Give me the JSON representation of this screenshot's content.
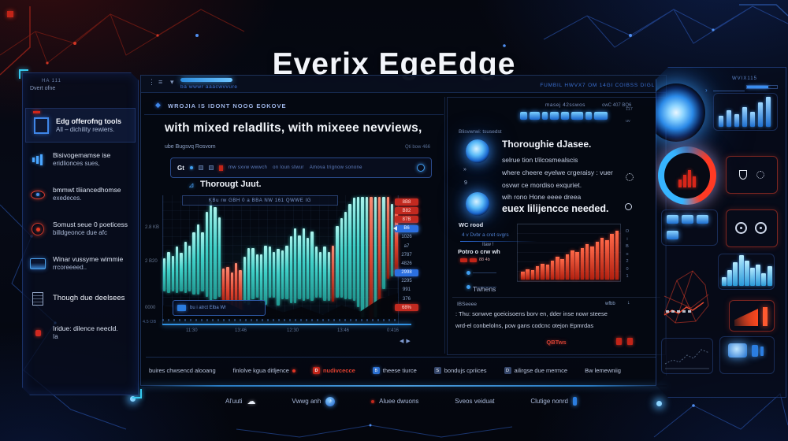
{
  "title": "Everix EgeEdge",
  "colors": {
    "accent_blue": "#2e8fe0",
    "accent_cyan": "#3fd0c8",
    "accent_red": "#d0261a",
    "panel_border": "#1c3158"
  },
  "sidebar": {
    "meta1": "HA 111",
    "meta2": "Dvert ofne",
    "items": [
      {
        "icon": "frame",
        "label1": "Edg offerofng tools",
        "label2": "All – dichility rewiers."
      },
      {
        "icon": "bars",
        "label1": "Bisivogemamse ise",
        "label2": "eridlionces sues,"
      },
      {
        "icon": "eye",
        "label1": "bmmwt tliiancedhomse",
        "label2": "exedeces."
      },
      {
        "icon": "target",
        "label1": "Somust seue 0 poeticess",
        "label2": "billdgeonce due afc"
      },
      {
        "icon": "inbox",
        "label1": "Winar vussyme wimmie",
        "label2": "rrcoreeeed.."
      },
      {
        "icon": "doc",
        "label1": "Though due deelsees",
        "label2": ""
      },
      {
        "icon": "reddot",
        "label1": "Iridue: dilence neecld.",
        "label2": "Ia"
      }
    ]
  },
  "window": {
    "topbar_note": "ba wwwr aaacwvvure",
    "topbar_right": "FUMBIL HWVX7 OM 14GI COIBSS DIGL",
    "menu_icons": {
      "kebab": "⋮",
      "hamburger": "≡",
      "caret": "▾"
    },
    "section_header": "WROJIA IS IDONT NOOG EOKOVE",
    "headline": "with mixed reladlits, with mixeee nevviews,",
    "subleft": "ube Bugsvq Rosvom",
    "subright": "Qti bow 466",
    "toolbar": {
      "label": "Gt",
      "mini1": "mw sxvw wwwch",
      "mini2": "on loun stwur",
      "mini3": "Amova trignow sonone"
    },
    "chart": {
      "label": "Thorougt Juut.",
      "tooltip": "KBu rw GBH 0 a BBA NW 161 QWWE IG",
      "y_labels": [
        "2.8 KB",
        "2 B20",
        "0000"
      ],
      "axis_note": "4.5 OB",
      "x_labels": [
        "11:30",
        "13:46",
        "12:30",
        "13:46",
        "0:416"
      ],
      "legend": "bu i atrct Elba Wr",
      "pager": {
        "prev": "◀",
        "next": "▶"
      },
      "price_scale": [
        {
          "t": "8B8",
          "k": "red"
        },
        {
          "t": "B82",
          "k": "red"
        },
        {
          "t": "87B",
          "k": "red"
        },
        {
          "t": "B6",
          "k": "cursor"
        },
        {
          "t": "1026",
          "k": "plain"
        },
        {
          "t": "a7",
          "k": "plain"
        },
        {
          "t": "2787",
          "k": "plain"
        },
        {
          "t": "4826",
          "k": "plain"
        },
        {
          "t": "2998",
          "k": "blue"
        },
        {
          "t": "2295",
          "k": "plain"
        },
        {
          "t": "991",
          "k": "plain"
        },
        {
          "t": "376",
          "k": "plain"
        },
        {
          "t": "68%",
          "k": "red"
        }
      ],
      "bars": {
        "heights": [
          26,
          32,
          28,
          36,
          30,
          40,
          36,
          48,
          54,
          46,
          66,
          78,
          72,
          62,
          30,
          36,
          32,
          40,
          34,
          36,
          44,
          40,
          34,
          38,
          46,
          40,
          36,
          44,
          38,
          42,
          52,
          58,
          50,
          56,
          48,
          54,
          40,
          36,
          42,
          38,
          44,
          56,
          62,
          68,
          74,
          80,
          86,
          94,
          88,
          100,
          94,
          82,
          72,
          64,
          56,
          48
        ],
        "centers": [
          62,
          60,
          61,
          58,
          60,
          56,
          57,
          53,
          50,
          52,
          46,
          44,
          45,
          48,
          72,
          74,
          76,
          73,
          75,
          66,
          63,
          61,
          63,
          65,
          62,
          60,
          62,
          64,
          62,
          60,
          58,
          55,
          56,
          54,
          57,
          55,
          60,
          62,
          61,
          63,
          61,
          52,
          49,
          47,
          44,
          42,
          40,
          37,
          38,
          34,
          36,
          34,
          30,
          32,
          35,
          38
        ],
        "reds": [
          14,
          15,
          16,
          17,
          18,
          40,
          49,
          51,
          53,
          55
        ]
      }
    }
  },
  "detail": {
    "meta_left": "masej 42sswos",
    "meta_right": "owC 407 BQ6",
    "meta_tiny1": "117",
    "meta_tiny2": "uv",
    "icon_row": [
      9,
      13,
      7,
      11,
      10,
      15,
      8,
      17
    ],
    "sublabel": "Blisvwrwi: tsusedst",
    "glyph1": "»",
    "glyph2": "9",
    "lines": {
      "title": "Thoroughie dJasee.",
      "l1": "selrue tion t/ilcosmealscis",
      "l2": "where cheere eyelwe crgeraisy : vuer",
      "l3": "osvwr ce mordiso exquriet.",
      "l4": "wih rono Hone eeee dreea",
      "emph": "euex lilijencce needed."
    },
    "wc_label": "WC rood",
    "wc_link": "4 v Dvbr a cret svgrs",
    "mini_label1": "Itaw !",
    "mini_label2": "Potro o crw wh",
    "mini_badge_text": "88 4b",
    "mini_chart": {
      "heights": [
        14,
        18,
        16,
        24,
        28,
        26,
        34,
        40,
        36,
        44,
        52,
        48,
        56,
        62,
        58,
        66,
        74,
        70,
        80,
        86
      ]
    },
    "side_marks": [
      "O",
      "i",
      "B",
      "≡",
      "2",
      "0",
      "1"
    ],
    "tw_label": "Twhens",
    "foot_label": "IBSeeee",
    "foot_right": "wfbb",
    "foot_dl": "↓",
    "foot_line1": ": Thu: sonwve goeicisoens borv en, dder inse nowr steese",
    "foot_line2": "wrd-el conbelolns, pow gans codcnc otejon Epmrdas",
    "foot_red": "QBTws"
  },
  "tabs": [
    {
      "label": "buires chwsencd alooang",
      "kind": "plain",
      "icon": ""
    },
    {
      "label": "finlolve kgua ditljence",
      "kind": "reddot",
      "icon": ""
    },
    {
      "label": "nudivcecce",
      "kind": "red",
      "icon": "D"
    },
    {
      "label": "theese tiurce",
      "kind": "blue",
      "icon": "B"
    },
    {
      "label": "bondujs cpriices",
      "kind": "gray",
      "icon": "S"
    },
    {
      "label": "ailirgse due mermce",
      "kind": "gray",
      "icon": "D"
    },
    {
      "label": "Bw lemewniig",
      "kind": "plain",
      "icon": ""
    }
  ],
  "footer": [
    {
      "label": "Al'uuti",
      "icon": "cloud"
    },
    {
      "label": "Vwwg anh",
      "icon": "music"
    },
    {
      "label": "Aluee dwuons",
      "icon": "reddot-pre"
    },
    {
      "label": "Sveos veiduat",
      "icon": ""
    },
    {
      "label": "Clutige nonrd",
      "icon": "pin"
    }
  ],
  "hud": {
    "label": "WVIX115",
    "chevron": "›",
    "bars1": [
      30,
      45,
      35,
      55,
      42,
      68,
      82
    ],
    "skyline": [
      25,
      45,
      68,
      88,
      72,
      52,
      62,
      36,
      56
    ],
    "ring_bars": [
      10,
      16,
      22,
      14
    ],
    "blocks": 4
  }
}
